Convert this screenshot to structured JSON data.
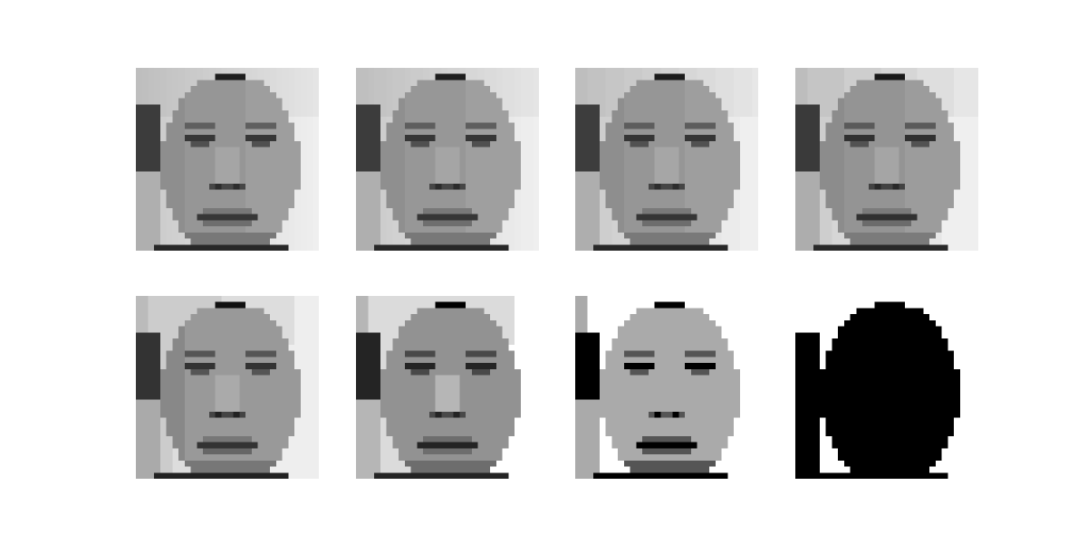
{
  "figure": {
    "background": "#ffffff",
    "grid": {
      "rows": 2,
      "cols": 4
    },
    "panels": [
      {
        "name": "panel-original",
        "levels": 256,
        "row": 0,
        "col": 0
      },
      {
        "name": "panel-quant-1",
        "levels": 128,
        "row": 0,
        "col": 1
      },
      {
        "name": "panel-quant-2",
        "levels": 64,
        "row": 0,
        "col": 2
      },
      {
        "name": "panel-quant-3",
        "levels": 32,
        "row": 0,
        "col": 3
      },
      {
        "name": "panel-quant-4",
        "levels": 16,
        "row": 1,
        "col": 0
      },
      {
        "name": "panel-quant-5",
        "levels": 8,
        "row": 1,
        "col": 1
      },
      {
        "name": "panel-quant-6",
        "levels": 4,
        "row": 1,
        "col": 2
      },
      {
        "name": "panel-binary",
        "levels": 2,
        "row": 1,
        "col": 3
      }
    ]
  }
}
